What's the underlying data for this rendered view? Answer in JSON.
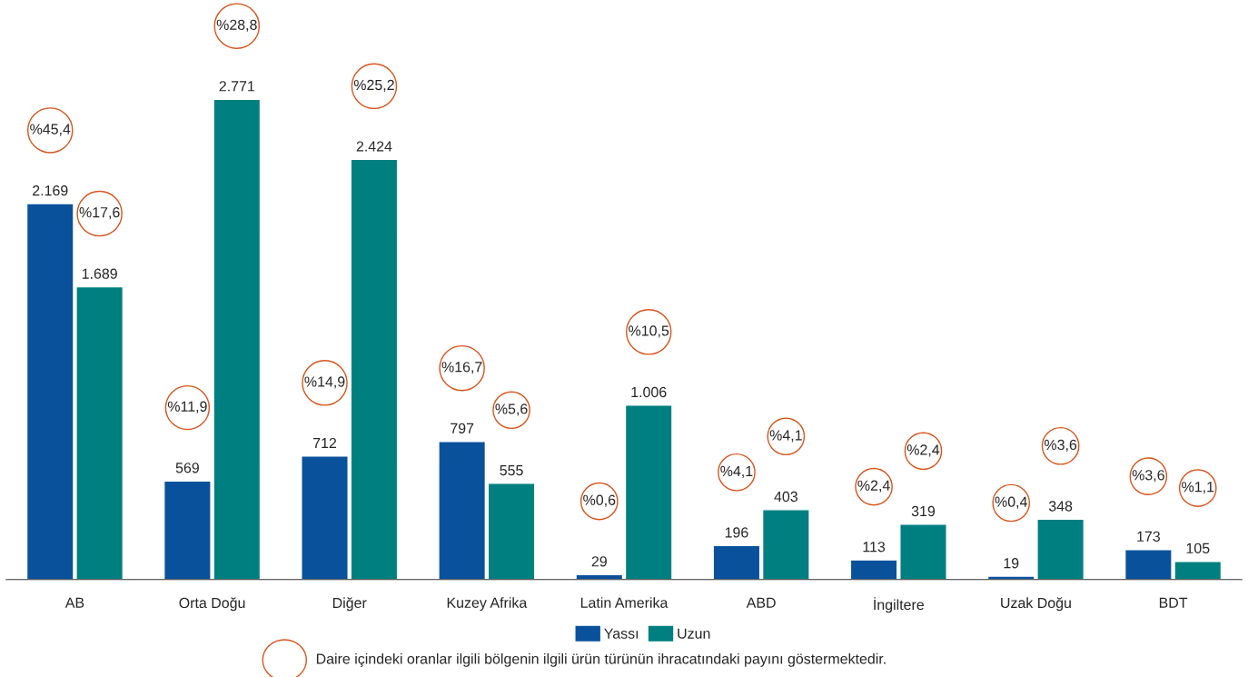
{
  "chart_data": {
    "type": "bar",
    "categories": [
      "AB",
      "Orta Doğu",
      "Diğer",
      "Kuzey Afrika",
      "Latin Amerika",
      "ABD",
      "İngiltere",
      "Uzak Doğu",
      "BDT"
    ],
    "series": [
      {
        "name": "Yassı",
        "color": "#0a519c",
        "values": [
          2169,
          569,
          712,
          797,
          29,
          196,
          113,
          19,
          173
        ],
        "value_labels": [
          "2.169",
          "569",
          "712",
          "797",
          "29",
          "196",
          "113",
          "19",
          "173"
        ]
      },
      {
        "name": "Uzun",
        "color": "#007f80",
        "values": [
          1689,
          2771,
          2424,
          555,
          1006,
          403,
          319,
          348,
          105
        ],
        "value_labels": [
          "1.689",
          "2.771",
          "2.424",
          "555",
          "1.006",
          "403",
          "319",
          "348",
          "105"
        ]
      }
    ],
    "legend": "bottom",
    "annotations": [
      "%45,4",
      "%17,6",
      "%11,9",
      "%28,8",
      "%14,9",
      "%25,2",
      "%16,7",
      "%5,6",
      "%0,6",
      "%10,5",
      "%4,1",
      "%4,1",
      "%2,4",
      "%2,4",
      "%0,4",
      "%3,6",
      "%3,6",
      "%1,1",
      "Daire içindeki oranlar ilgili bölgenin ilgili ürün türünün ihracatındaki payını göstermektedir."
    ]
  }
}
